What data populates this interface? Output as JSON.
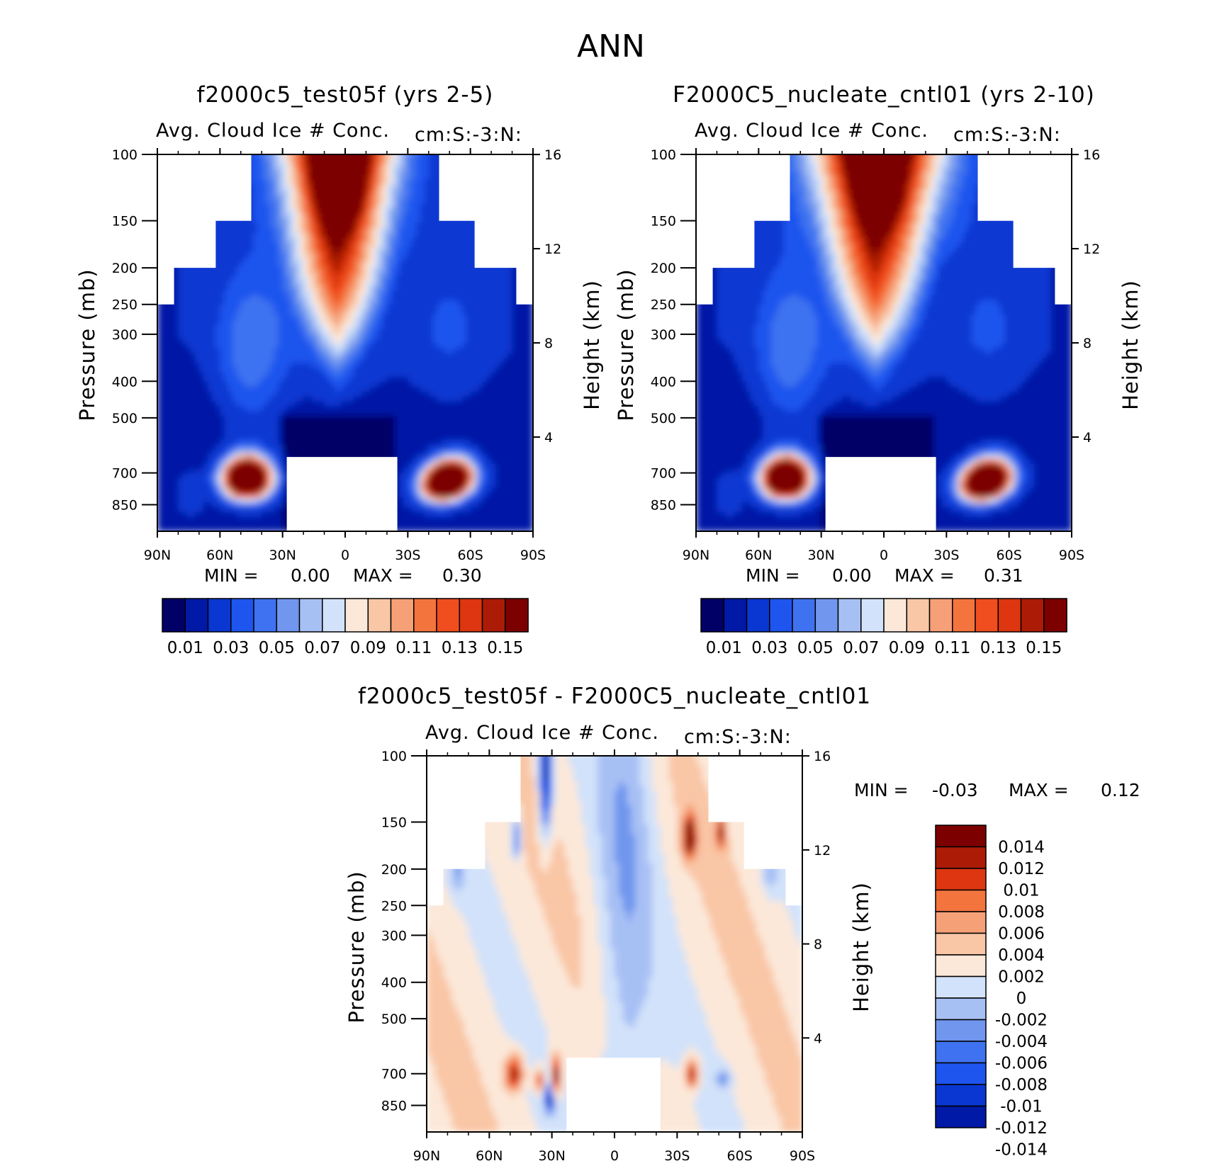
{
  "figure": {
    "title": "ANN"
  },
  "scale_abs": [
    "#000066",
    "#0019a6",
    "#0a37d2",
    "#1e55ee",
    "#3e72f0",
    "#7096ee",
    "#a7c0f4",
    "#d2e2fa",
    "#fce8d9",
    "#f9c6a6",
    "#f6a078",
    "#f4743e",
    "#f14e1f",
    "#dd3610",
    "#ac1b06",
    "#7d0000"
  ],
  "scale_diff": [
    "#7d0000",
    "#ac1b06",
    "#dd3610",
    "#f4743e",
    "#f6a078",
    "#f9c6a6",
    "#fce8d9",
    "#d2e2fa",
    "#a7c0f4",
    "#7096ee",
    "#3e72f0",
    "#1e55ee",
    "#0a37d2",
    "#0019a6"
  ],
  "chart_data": [
    {
      "type": "heatmap",
      "title": "f2000c5_test05f (yrs 2-5)",
      "subtitle_left": "Avg. Cloud Ice # Conc.",
      "subtitle_right": "cm:S:-3:N:",
      "ylabel": "Pressure (mb)",
      "ylabel_right": "Height (km)",
      "x_ticks": [
        "90N",
        "60N",
        "30N",
        "0",
        "30S",
        "60S",
        "90S"
      ],
      "y_ticks": [
        "100",
        "150",
        "200",
        "250",
        "300",
        "400",
        "500",
        "700",
        "850"
      ],
      "y_ticks_right": [
        "16",
        "12",
        "8",
        "4"
      ],
      "yscale": "log",
      "min_label": "MIN =",
      "min_value": "0.00",
      "max_label": "MAX =",
      "max_value": "0.30",
      "colorbar_labels": [
        "0.01",
        "0.03",
        "0.05",
        "0.07",
        "0.09",
        "0.11",
        "0.13",
        "0.15"
      ]
    },
    {
      "type": "heatmap",
      "title": "F2000C5_nucleate_cntl01 (yrs 2-10)",
      "subtitle_left": "Avg. Cloud Ice # Conc.",
      "subtitle_right": "cm:S:-3:N:",
      "ylabel": "Pressure (mb)",
      "ylabel_right": "Height (km)",
      "x_ticks": [
        "90N",
        "60N",
        "30N",
        "0",
        "30S",
        "60S",
        "90S"
      ],
      "y_ticks": [
        "100",
        "150",
        "200",
        "250",
        "300",
        "400",
        "500",
        "700",
        "850"
      ],
      "y_ticks_right": [
        "16",
        "12",
        "8",
        "4"
      ],
      "yscale": "log",
      "min_label": "MIN =",
      "min_value": "0.00",
      "max_label": "MAX =",
      "max_value": "0.31",
      "colorbar_labels": [
        "0.01",
        "0.03",
        "0.05",
        "0.07",
        "0.09",
        "0.11",
        "0.13",
        "0.15"
      ]
    },
    {
      "type": "heatmap",
      "title": "f2000c5_test05f - F2000C5_nucleate_cntl01",
      "subtitle_left": "Avg. Cloud Ice # Conc.",
      "subtitle_right": "cm:S:-3:N:",
      "ylabel": "Pressure (mb)",
      "ylabel_right": "Height (km)",
      "x_ticks": [
        "90N",
        "60N",
        "30N",
        "0",
        "30S",
        "60S",
        "90S"
      ],
      "y_ticks": [
        "100",
        "150",
        "200",
        "250",
        "300",
        "400",
        "500",
        "700",
        "850"
      ],
      "y_ticks_right": [
        "16",
        "12",
        "8",
        "4"
      ],
      "yscale": "log",
      "min_label": "MIN =",
      "min_value": "-0.03",
      "max_label": "MAX =",
      "max_value": "0.12",
      "colorbar_labels": [
        "0.014",
        "0.012",
        "0.01",
        "0.008",
        "0.006",
        "0.004",
        "0.002",
        "0",
        "-0.002",
        "-0.004",
        "-0.006",
        "-0.008",
        "-0.01",
        "-0.012",
        "-0.014"
      ]
    }
  ]
}
